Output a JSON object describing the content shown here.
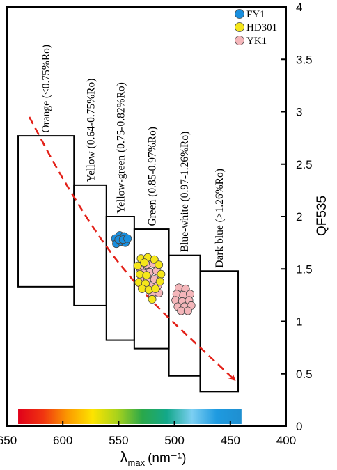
{
  "chart_data": {
    "type": "scatter",
    "x_axis": {
      "label_main": "λ",
      "label_sub": "max",
      "label_unit": "(nm⁻¹)",
      "range": [
        650,
        400
      ],
      "ticks": [
        "650",
        "600",
        "550",
        "500",
        "450",
        "400"
      ]
    },
    "y_axis": {
      "label": "QF535",
      "position": "right",
      "range": [
        0,
        4
      ],
      "ticks": [
        "0",
        "0.5",
        "1",
        "1.5",
        "2",
        "2.5",
        "3",
        "3.5",
        "4"
      ]
    },
    "color_bar": {
      "x_range": [
        640,
        440
      ],
      "stops": [
        "#e0001a",
        "#f03410",
        "#fb9a00",
        "#fde400",
        "#a8d21c",
        "#2aa84a",
        "#13a88a",
        "#7ccff2",
        "#1e9ae0",
        "#1f8fd0"
      ]
    },
    "zones": [
      {
        "label": "Orange  (<0.75%Ro)",
        "x_range": [
          640,
          590
        ],
        "y_range": [
          1.33,
          2.77
        ],
        "label_x": 615,
        "label_y": 2.8
      },
      {
        "label": "Yellow  (0.64-0.75%Ro)",
        "x_range": [
          590,
          561
        ],
        "y_range": [
          1.15,
          2.3
        ],
        "label_x": 575,
        "label_y": 2.33
      },
      {
        "label": "Yellow-green  (0.75-0.82%Ro)",
        "x_range": [
          561,
          536
        ],
        "y_range": [
          0.82,
          2.0
        ],
        "label_x": 548,
        "label_y": 2.03
      },
      {
        "label": "Green  (0.85-0.97%Ro)",
        "x_range": [
          536,
          505
        ],
        "y_range": [
          0.74,
          1.88
        ],
        "label_x": 520,
        "label_y": 1.91
      },
      {
        "label": "Blue-white  (0.97-1.26%Ro)",
        "x_range": [
          505,
          477
        ],
        "y_range": [
          0.48,
          1.63
        ],
        "label_x": 491,
        "label_y": 1.66
      },
      {
        "label": "Dark blue  (>1.26%Ro)",
        "x_range": [
          477,
          443
        ],
        "y_range": [
          0.33,
          1.48
        ],
        "label_x": 460,
        "label_y": 1.51
      }
    ],
    "trend_arrow": {
      "color": "#e32119",
      "style": "dashed",
      "points": [
        [
          630,
          2.95
        ],
        [
          600,
          2.35
        ],
        [
          560,
          1.68
        ],
        [
          520,
          1.18
        ],
        [
          480,
          0.78
        ],
        [
          447,
          0.45
        ]
      ]
    },
    "legend": {
      "placement": "top-right",
      "entries": [
        {
          "name": "FY1",
          "color": "#1a8fde"
        },
        {
          "name": "HD301",
          "color": "#f5e61a"
        },
        {
          "name": "YK1",
          "color": "#f4b6ba"
        }
      ]
    },
    "series": [
      {
        "name": "FY1",
        "color": "#1a8fde",
        "points": [
          [
            553,
            1.79
          ],
          [
            549,
            1.82
          ],
          [
            545,
            1.81
          ],
          [
            552,
            1.74
          ],
          [
            548,
            1.76
          ],
          [
            544,
            1.75
          ],
          [
            550,
            1.78
          ],
          [
            546,
            1.78
          ],
          [
            542,
            1.79
          ]
        ]
      },
      {
        "name": "YK1",
        "color": "#f4b6ba",
        "points": [
          [
            531,
            1.51
          ],
          [
            525,
            1.54
          ],
          [
            519,
            1.55
          ],
          [
            528,
            1.46
          ],
          [
            522,
            1.47
          ],
          [
            516,
            1.48
          ],
          [
            530,
            1.39
          ],
          [
            524,
            1.4
          ],
          [
            518,
            1.4
          ],
          [
            527,
            1.33
          ],
          [
            521,
            1.33
          ],
          [
            515,
            1.34
          ],
          [
            520,
            1.26
          ],
          [
            514,
            1.27
          ],
          [
            496,
            1.32
          ],
          [
            490,
            1.31
          ],
          [
            498,
            1.26
          ],
          [
            492,
            1.25
          ],
          [
            486,
            1.26
          ],
          [
            499,
            1.2
          ],
          [
            493,
            1.19
          ],
          [
            487,
            1.2
          ],
          [
            497,
            1.14
          ],
          [
            491,
            1.14
          ],
          [
            485,
            1.15
          ],
          [
            494,
            1.1
          ],
          [
            488,
            1.1
          ]
        ]
      },
      {
        "name": "HD301",
        "color": "#f5e61a",
        "points": [
          [
            530,
            1.6
          ],
          [
            524,
            1.61
          ],
          [
            518,
            1.59
          ],
          [
            533,
            1.53
          ],
          [
            527,
            1.56
          ],
          [
            514,
            1.54
          ],
          [
            531,
            1.45
          ],
          [
            525,
            1.44
          ],
          [
            512,
            1.45
          ],
          [
            532,
            1.37
          ],
          [
            526,
            1.36
          ],
          [
            513,
            1.38
          ],
          [
            529,
            1.31
          ],
          [
            523,
            1.3
          ],
          [
            517,
            1.31
          ],
          [
            520,
            1.21
          ]
        ]
      }
    ]
  }
}
